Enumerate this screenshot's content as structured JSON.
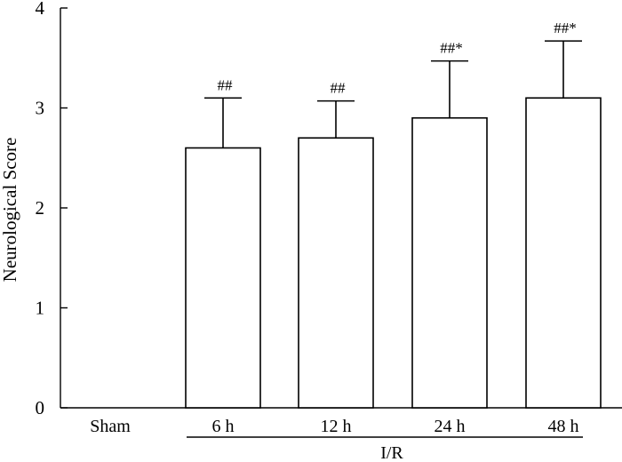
{
  "chart_data": {
    "type": "bar",
    "categories": [
      "Sham",
      "6 h",
      "12 h",
      "24 h",
      "48 h"
    ],
    "values": [
      0,
      2.6,
      2.7,
      2.9,
      3.1
    ],
    "errors": [
      0,
      0.5,
      0.37,
      0.57,
      0.57
    ],
    "annotations": [
      "",
      "##",
      "##",
      "##*",
      "##*"
    ],
    "ylabel": "Neurological Score",
    "xlabel": "",
    "ylim": [
      0,
      4
    ],
    "yticks": [
      0,
      1,
      2,
      3,
      4
    ],
    "group_label": {
      "text": "I/R",
      "from_category": 1,
      "to_category": 4
    },
    "grid": false,
    "legend": "none"
  }
}
